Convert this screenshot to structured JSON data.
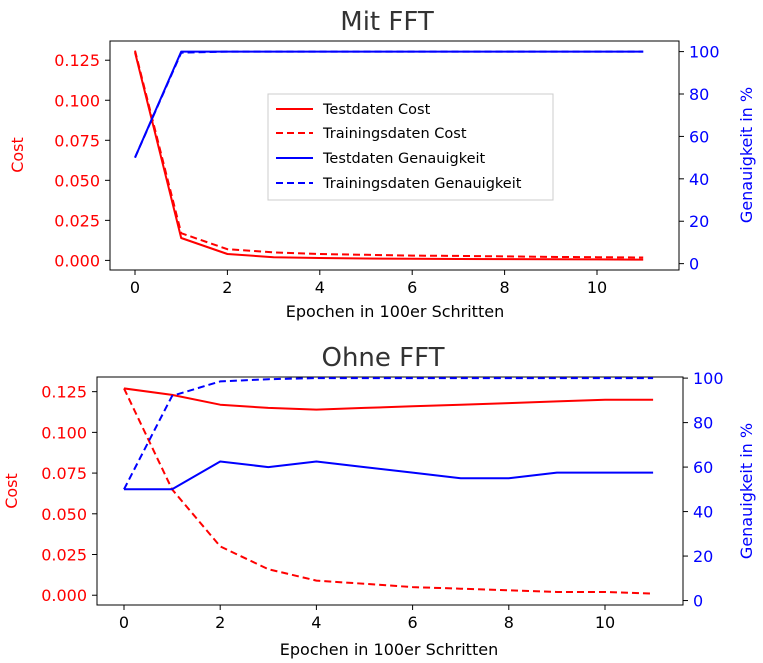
{
  "chart_data": [
    {
      "type": "line",
      "title": "Mit FFT",
      "xlabel": "Epochen in 100er Schritten",
      "ylabel_left": "Cost",
      "ylabel_right": "Genauigkeit in %",
      "x": [
        0,
        1,
        2,
        3,
        4,
        5,
        6,
        7,
        8,
        9,
        10,
        11
      ],
      "xticks": [
        0,
        2,
        4,
        6,
        8,
        10
      ],
      "yticks_left": [
        "0.000",
        "0.025",
        "0.050",
        "0.075",
        "0.100",
        "0.125"
      ],
      "yticks_right": [
        0,
        20,
        40,
        60,
        80,
        100
      ],
      "ylim_left": [
        -0.006,
        0.137
      ],
      "ylim_right": [
        -3,
        105
      ],
      "legend_position": "center",
      "left_color": "#ff0000",
      "right_color": "#0000ff",
      "series": [
        {
          "name": "Testdaten Cost",
          "axis": "left",
          "style": "solid",
          "color": "#ff0000",
          "values": [
            0.13,
            0.014,
            0.004,
            0.002,
            0.0015,
            0.0012,
            0.001,
            0.0009,
            0.0008,
            0.0007,
            0.0006,
            0.0005
          ]
        },
        {
          "name": "Trainingsdaten Cost",
          "axis": "left",
          "style": "dashed",
          "color": "#ff0000",
          "values": [
            0.131,
            0.017,
            0.007,
            0.005,
            0.004,
            0.0035,
            0.003,
            0.0028,
            0.0025,
            0.0022,
            0.002,
            0.0018
          ]
        },
        {
          "name": "Testdaten Genauigkeit",
          "axis": "right",
          "style": "solid",
          "color": "#0000ff",
          "values": [
            50,
            100,
            100,
            100,
            100,
            100,
            100,
            100,
            100,
            100,
            100,
            100
          ]
        },
        {
          "name": "Trainingsdaten Genauigkeit",
          "axis": "right",
          "style": "dashed",
          "color": "#0000ff",
          "values": [
            50,
            99.5,
            100,
            100,
            100,
            100,
            100,
            100,
            100,
            100,
            100,
            100
          ]
        }
      ]
    },
    {
      "type": "line",
      "title": "Ohne FFT",
      "xlabel": "Epochen in 100er Schritten",
      "ylabel_left": "Cost",
      "ylabel_right": "Genauigkeit in %",
      "x": [
        0,
        1,
        2,
        3,
        4,
        5,
        6,
        7,
        8,
        9,
        10,
        11
      ],
      "xticks": [
        0,
        2,
        4,
        6,
        8,
        10
      ],
      "yticks_left": [
        "0.000",
        "0.025",
        "0.050",
        "0.075",
        "0.100",
        "0.125"
      ],
      "yticks_right": [
        0,
        20,
        40,
        60,
        80,
        100
      ],
      "ylim_left": [
        -0.006,
        0.134
      ],
      "ylim_right": [
        -2,
        100.5
      ],
      "left_color": "#ff0000",
      "right_color": "#0000ff",
      "series": [
        {
          "name": "Testdaten Cost",
          "axis": "left",
          "style": "solid",
          "color": "#ff0000",
          "values": [
            0.127,
            0.123,
            0.117,
            0.115,
            0.114,
            0.115,
            0.116,
            0.117,
            0.118,
            0.119,
            0.12,
            0.12
          ]
        },
        {
          "name": "Trainingsdaten Cost",
          "axis": "left",
          "style": "dashed",
          "color": "#ff0000",
          "values": [
            0.127,
            0.065,
            0.03,
            0.016,
            0.009,
            0.007,
            0.005,
            0.004,
            0.003,
            0.002,
            0.002,
            0.001
          ]
        },
        {
          "name": "Testdaten Genauigkeit",
          "axis": "right",
          "style": "solid",
          "color": "#0000ff",
          "values": [
            50,
            50,
            62.5,
            60,
            62.5,
            60,
            57.5,
            55,
            55,
            57.5,
            57.5,
            57.5
          ]
        },
        {
          "name": "Trainingsdaten Genauigkeit",
          "axis": "right",
          "style": "dashed",
          "color": "#0000ff",
          "values": [
            50,
            92,
            98.5,
            99.5,
            100,
            100,
            100,
            100,
            100,
            100,
            100,
            100
          ]
        }
      ]
    }
  ]
}
